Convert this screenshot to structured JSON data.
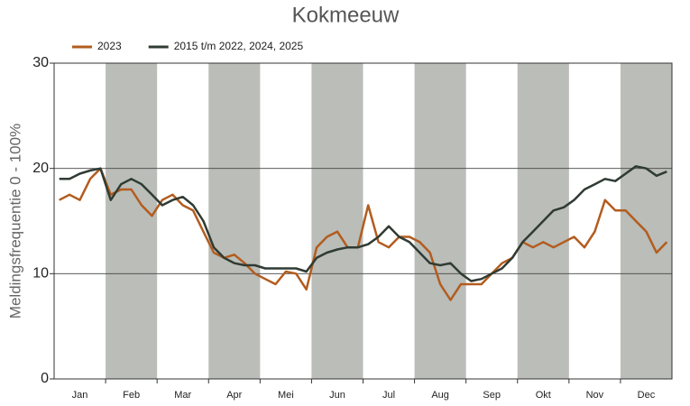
{
  "chart_data": {
    "type": "line",
    "title": "Kokmeeuw",
    "y_label": "Meldingsfrequentie 0 - 100%",
    "categories": [
      null,
      null,
      "Jan",
      null,
      null,
      null,
      null,
      "Feb",
      null,
      null,
      null,
      null,
      "Mar",
      null,
      null,
      null,
      null,
      "Apr",
      null,
      null,
      null,
      null,
      "Mei",
      null,
      null,
      null,
      null,
      "Jun",
      null,
      null,
      null,
      null,
      "Jul",
      null,
      null,
      null,
      null,
      "Aug",
      null,
      null,
      null,
      null,
      "Sep",
      null,
      null,
      null,
      null,
      "Okt",
      null,
      null,
      null,
      null,
      "Nov",
      null,
      null,
      null,
      null,
      "Dec",
      null,
      null
    ],
    "series": [
      {
        "name": "2023",
        "color": "#b35c1e",
        "values": [
          17,
          17.5,
          17,
          19,
          20,
          17.5,
          18,
          18,
          16.5,
          15.5,
          17,
          17.5,
          16.5,
          16,
          14,
          12,
          11.5,
          11.8,
          11,
          10,
          9.5,
          9,
          10.2,
          10,
          8.5,
          12.5,
          13.5,
          14,
          12.5,
          12.5,
          16.5,
          13,
          12.5,
          13.5,
          13.5,
          13,
          12,
          9,
          7.5,
          9,
          9,
          9,
          10,
          11,
          11.5,
          13,
          12.5,
          13,
          12.5,
          13,
          13.5,
          12.5,
          14,
          17,
          16,
          16,
          15,
          14,
          12,
          13
        ]
      },
      {
        "name": "2015 t/m 2022, 2024, 2025",
        "color": "#2f3b33",
        "values": [
          19,
          19,
          19.5,
          19.8,
          20,
          17,
          18.5,
          19,
          18.5,
          17.5,
          16.5,
          17,
          17.3,
          16.5,
          15,
          12.5,
          11.5,
          11,
          10.8,
          10.8,
          10.5,
          10.5,
          10.5,
          10.5,
          10.2,
          11.5,
          12,
          12.3,
          12.5,
          12.5,
          12.8,
          13.5,
          14.5,
          13.5,
          13,
          12,
          11,
          10.8,
          11,
          10,
          9.3,
          9.5,
          10,
          10.5,
          11.5,
          13,
          14,
          15,
          16,
          16.3,
          17,
          18,
          18.5,
          19,
          18.8,
          19.5,
          20.2,
          20,
          19.3,
          19.7
        ]
      }
    ],
    "ylim": [
      0,
      30
    ],
    "yticks": [
      0,
      10,
      20,
      30
    ],
    "grid": true,
    "legend": "top-left"
  }
}
